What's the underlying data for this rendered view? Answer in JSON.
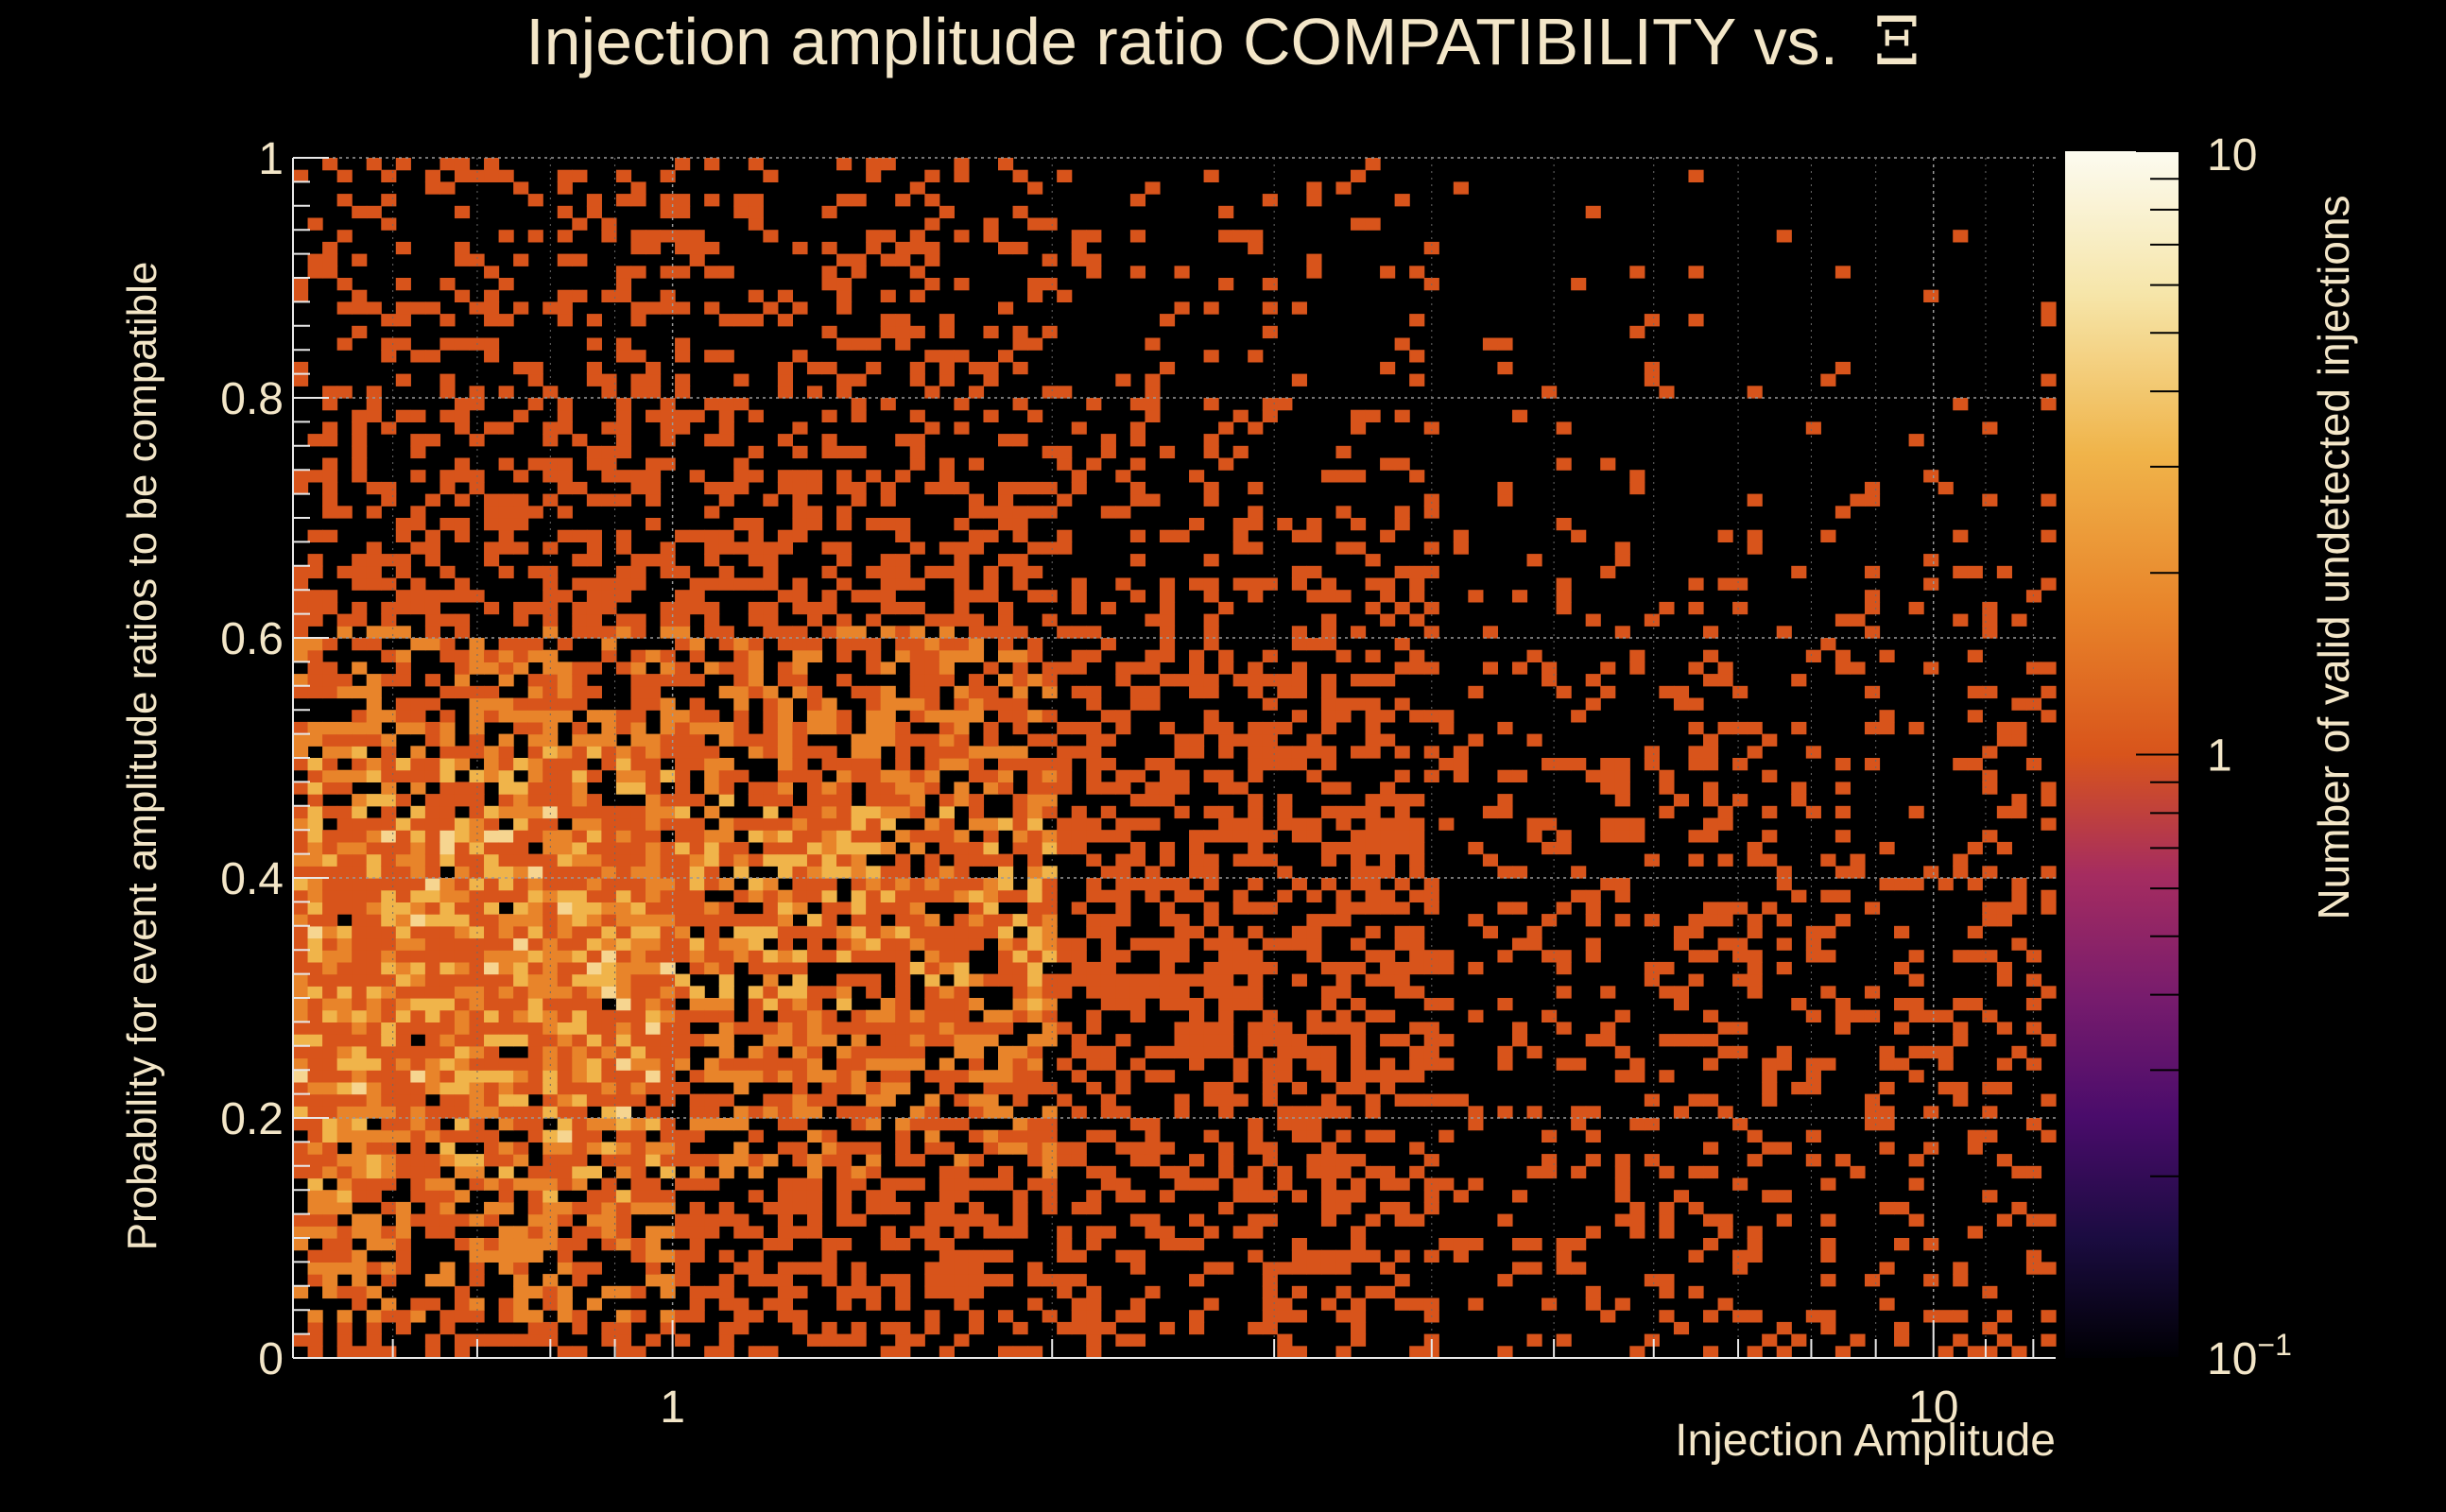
{
  "chart_data": {
    "type": "heatmap",
    "title": "Injection amplitude ratio COMPATIBILITY vs.",
    "title_symbol": "Ξ",
    "xlabel": "Injection Amplitude",
    "ylabel": "Probability for event amplitude ratios to be compatible",
    "zlabel": "Number of valid undetected injections",
    "x_scale": "log",
    "xlim": [
      0.5,
      12.5
    ],
    "ylim": [
      0,
      1
    ],
    "z_scale": "log",
    "zlim": [
      0.1,
      10
    ],
    "x_tick_labels": [
      {
        "value": 1,
        "label": "1"
      },
      {
        "value": 10,
        "label": "10"
      }
    ],
    "y_tick_labels": [
      {
        "value": 0,
        "label": "0"
      },
      {
        "value": 0.2,
        "label": "0.2"
      },
      {
        "value": 0.4,
        "label": "0.4"
      },
      {
        "value": 0.6,
        "label": "0.6"
      },
      {
        "value": 0.8,
        "label": "0.8"
      },
      {
        "value": 1,
        "label": "1"
      }
    ],
    "z_tick_labels": [
      {
        "value": 0.1,
        "label": "10",
        "sup": "−1"
      },
      {
        "value": 1,
        "label": "1",
        "sup": ""
      },
      {
        "value": 10,
        "label": "10",
        "sup": ""
      }
    ],
    "grid": true,
    "colormap": [
      "#000004",
      "#1b0c41",
      "#4a0c6b",
      "#781c6d",
      "#a52c60",
      "#cf4446",
      "#d8541b",
      "#e8842a",
      "#f0b44a",
      "#f6e5a8",
      "#fcfbf0"
    ],
    "bins": {
      "nx": 120,
      "ny": 100
    },
    "density_note_excluded": true,
    "regions": [
      {
        "x": [
          0.5,
          1.0
        ],
        "y": [
          0.15,
          0.45
        ],
        "count": 3
      },
      {
        "x": [
          1.0,
          2.0
        ],
        "y": [
          0.2,
          0.6
        ],
        "count": 2
      },
      {
        "x": [
          2.0,
          4.0
        ],
        "y": [
          0.15,
          0.55
        ],
        "count": 1
      },
      {
        "x": [
          4.0,
          12.0
        ],
        "y": [
          0.0,
          0.75
        ],
        "count": 1
      }
    ]
  }
}
